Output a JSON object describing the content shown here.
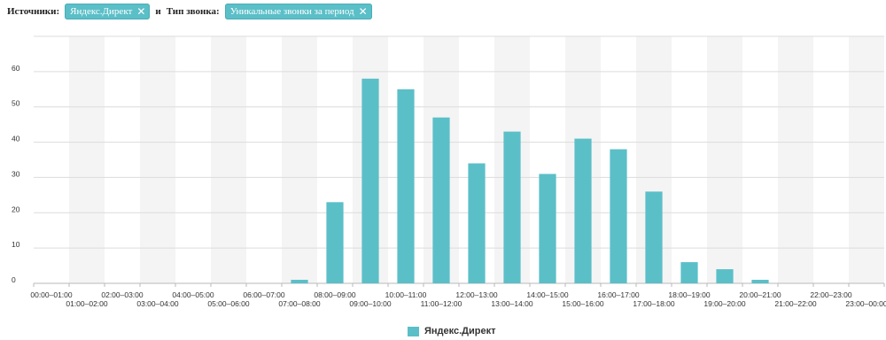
{
  "filters": {
    "source_label": "Источники:",
    "source_chip": "Яндекс.Директ",
    "joiner": "и",
    "calltype_label": "Тип звонка:",
    "calltype_chip": "Уникальные звонки за период",
    "remove_icon": "close-icon"
  },
  "colors": {
    "bar": "#5bbfc8",
    "band": "#f4f4f4",
    "grid": "#dcdcdc"
  },
  "chart_data": {
    "type": "bar",
    "categories": [
      "00:00–01:00",
      "01:00–02:00",
      "02:00–03:00",
      "03:00–04:00",
      "04:00–05:00",
      "05:00–06:00",
      "06:00–07:00",
      "07:00–08:00",
      "08:00–09:00",
      "09:00–10:00",
      "10:00–11:00",
      "11:00–12:00",
      "12:00–13:00",
      "13:00–14:00",
      "14:00–15:00",
      "15:00–16:00",
      "16:00–17:00",
      "17:00–18:00",
      "18:00–19:00",
      "19:00–20:00",
      "20:00–21:00",
      "21:00–22:00",
      "22:00–23:00",
      "23:00–00:00"
    ],
    "series": [
      {
        "name": "Яндекс.Директ",
        "values": [
          0,
          0,
          0,
          0,
          0,
          0,
          0,
          1,
          23,
          58,
          55,
          47,
          34,
          43,
          31,
          41,
          38,
          26,
          6,
          4,
          1,
          0,
          0,
          0
        ]
      }
    ],
    "yticks": [
      0,
      10,
      20,
      30,
      40,
      50,
      60
    ],
    "ylim": [
      0,
      70
    ],
    "grid": true,
    "legend_position": "bottom-center"
  }
}
